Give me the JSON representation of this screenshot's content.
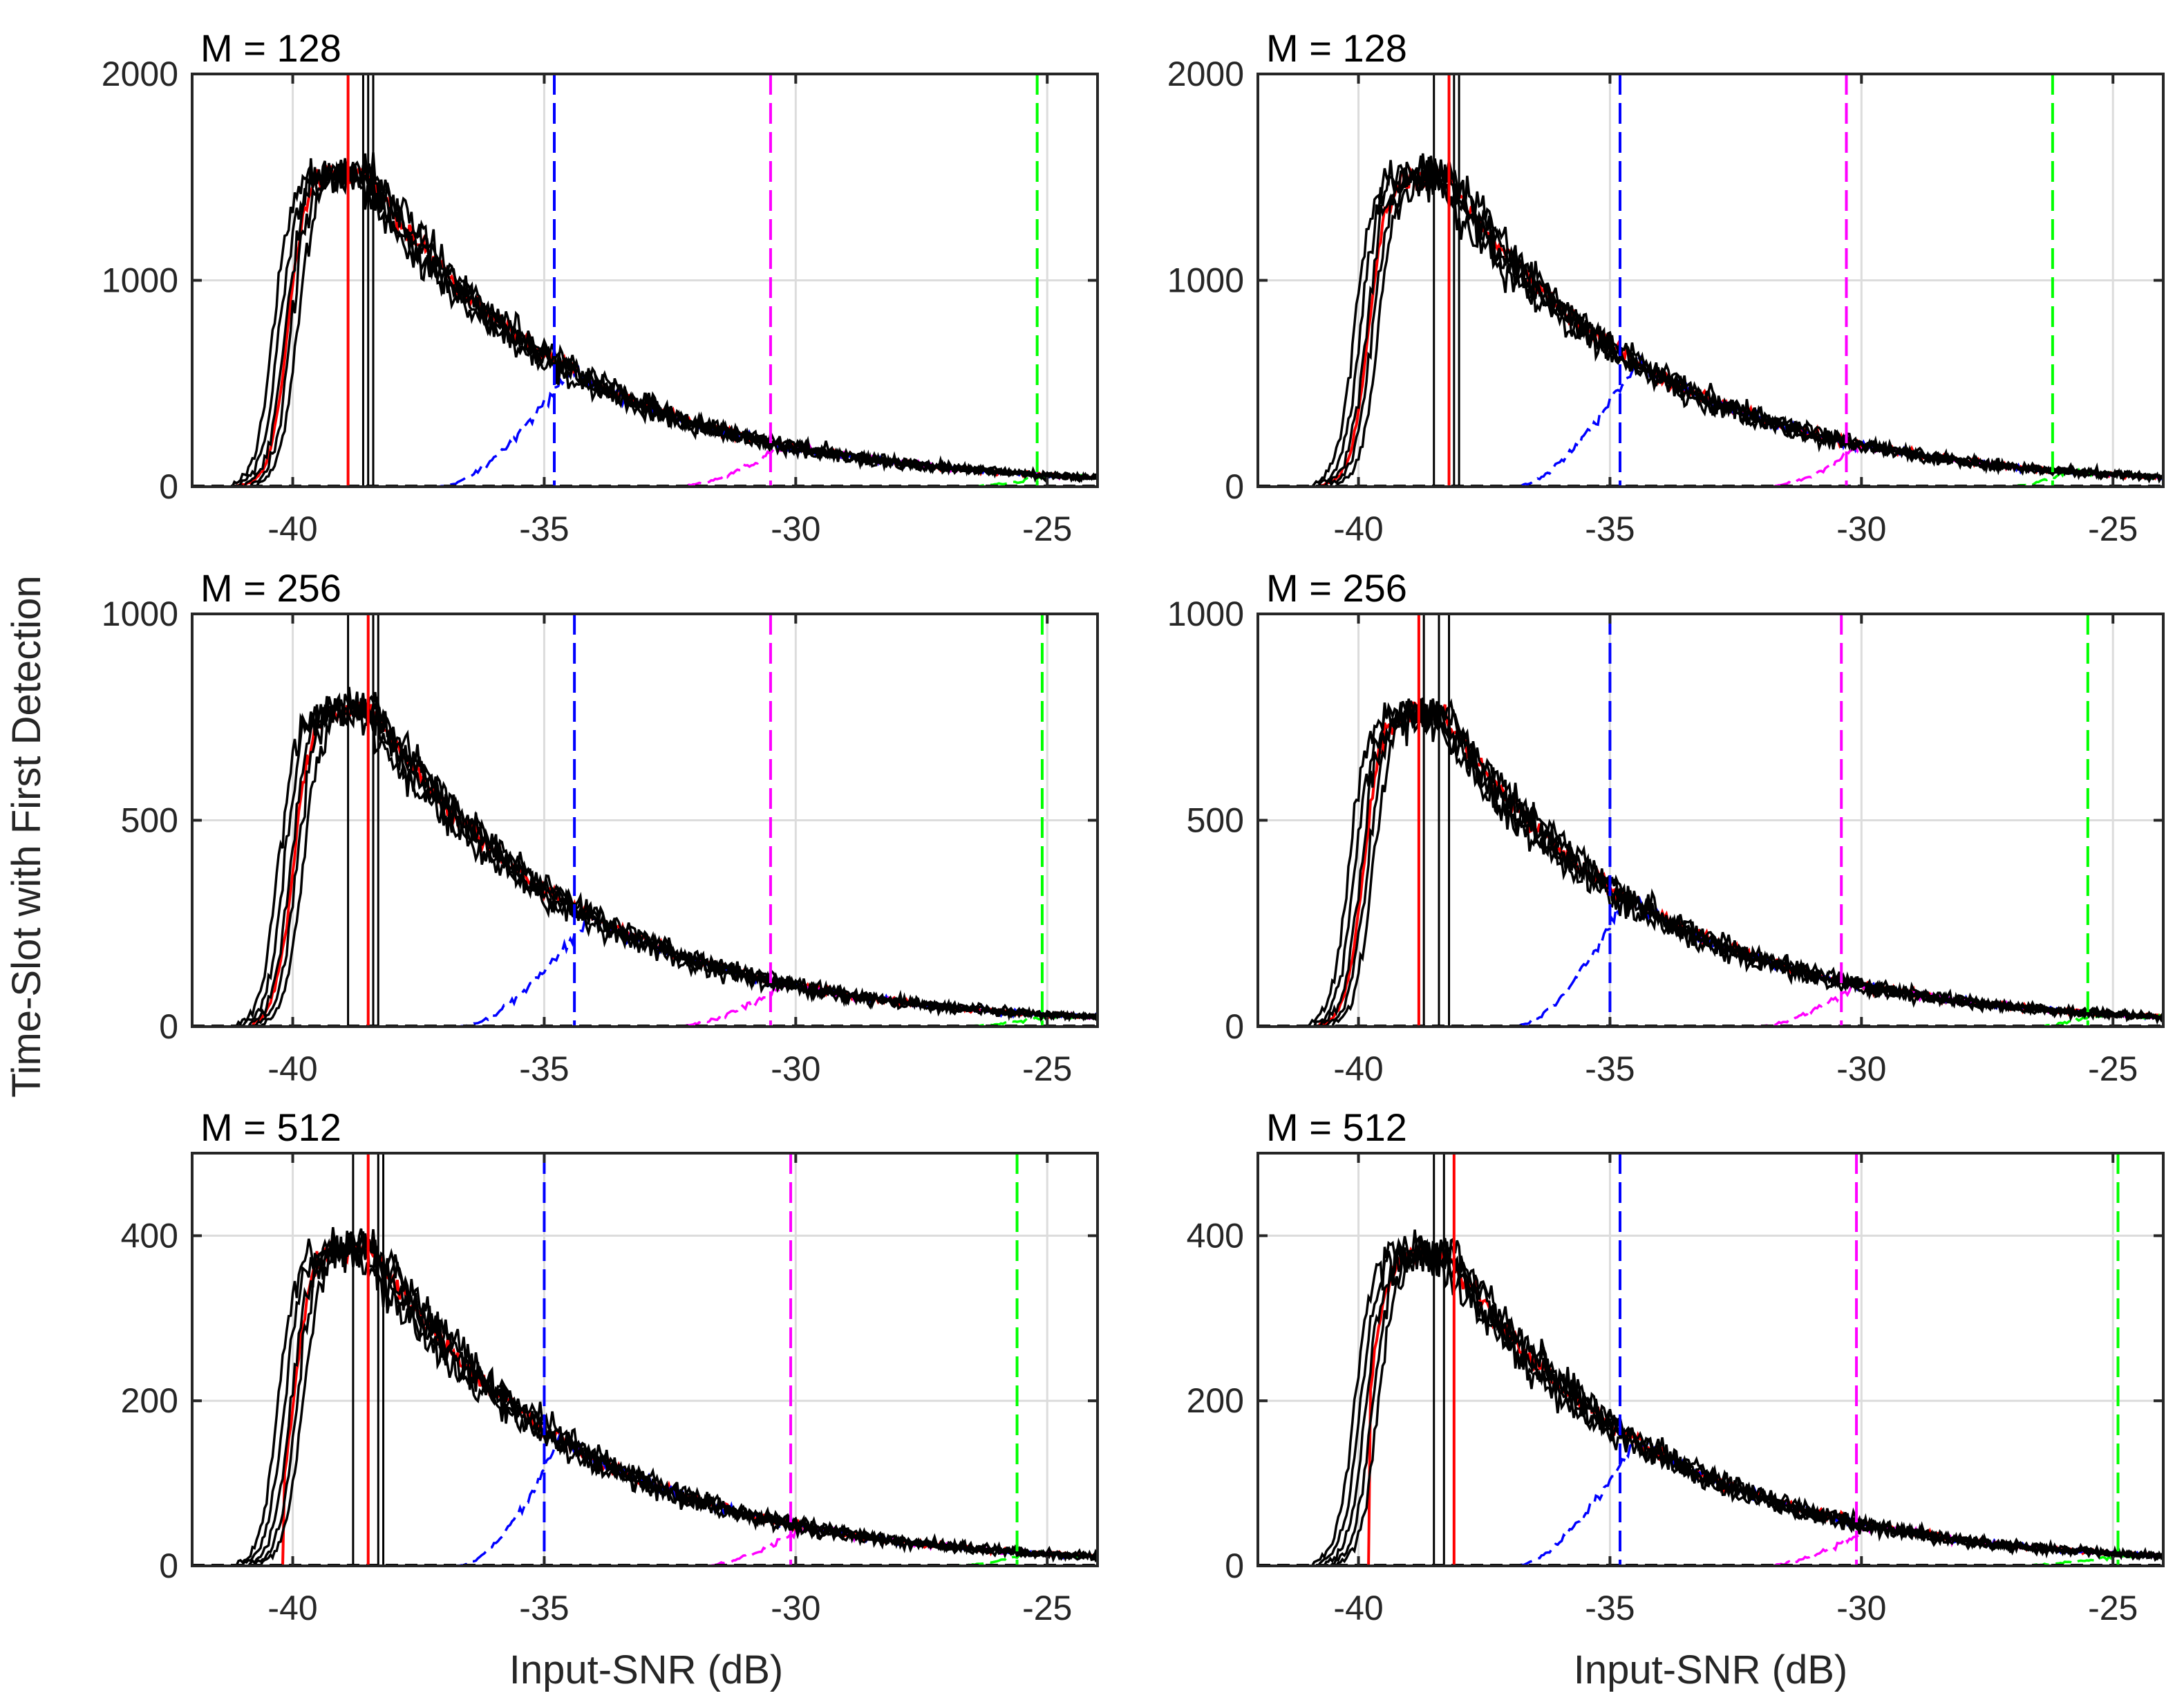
{
  "figure": {
    "ylabel": "Time-Slot with First Detection",
    "xlabel": "Input-SNR (dB)"
  },
  "colors": {
    "black": "#000000",
    "red": "#ff0000",
    "blue": "#0000ff",
    "magenta": "#ff00ff",
    "green": "#00ff00",
    "grid": "#dcdcdc",
    "axis": "#262626"
  },
  "chart_data": [
    {
      "type": "line",
      "title": "M = 128",
      "xlabel": "",
      "ylabel": "",
      "xlim": [
        -42,
        -24
      ],
      "ylim": [
        0,
        2000
      ],
      "xticks": [
        "-40",
        "-35",
        "-30",
        "-25"
      ],
      "xtick_values": [
        -40,
        -35,
        -30,
        -25
      ],
      "yticks": [
        "0",
        "1000",
        "2000"
      ],
      "ytick_values": [
        0,
        1000,
        2000
      ],
      "grid": true,
      "peak_snr": -38.6,
      "peak": 1520,
      "n_black_runs": 5,
      "black_vlines": [
        -38.6,
        -38.5,
        -38.4
      ],
      "series": [
        {
          "name": "red",
          "color": "red",
          "dashed": true,
          "start": -41.2,
          "vline": -38.9
        },
        {
          "name": "blue",
          "color": "blue",
          "dashed": true,
          "start": -37.2,
          "vline": -34.8
        },
        {
          "name": "magenta",
          "color": "magenta",
          "dashed": true,
          "start": -32.5,
          "vline": -30.5
        },
        {
          "name": "green",
          "color": "green",
          "dashed": true,
          "start": -26.8,
          "vline": -25.2
        }
      ]
    },
    {
      "type": "line",
      "title": "M = 128",
      "xlabel": "",
      "ylabel": "",
      "xlim": [
        -42,
        -24
      ],
      "ylim": [
        0,
        2000
      ],
      "xticks": [
        "-40",
        "-35",
        "-30",
        "-25"
      ],
      "xtick_values": [
        -40,
        -35,
        -30,
        -25
      ],
      "yticks": [
        "0",
        "1000",
        "2000"
      ],
      "ytick_values": [
        0,
        1000,
        2000
      ],
      "grid": true,
      "peak_snr": -38.3,
      "peak": 1500,
      "n_black_runs": 5,
      "black_vlines": [
        -38.5,
        -38.1,
        -38.0
      ],
      "series": [
        {
          "name": "red",
          "color": "red",
          "dashed": true,
          "start": -40.8,
          "vline": -38.2
        },
        {
          "name": "blue",
          "color": "blue",
          "dashed": true,
          "start": -37.0,
          "vline": -34.8
        },
        {
          "name": "magenta",
          "color": "magenta",
          "dashed": true,
          "start": -32.0,
          "vline": -30.3
        },
        {
          "name": "green",
          "color": "green",
          "dashed": true,
          "start": -27.2,
          "vline": -26.2
        }
      ]
    },
    {
      "type": "line",
      "title": "M = 256",
      "xlabel": "",
      "ylabel": "",
      "xlim": [
        -42,
        -24
      ],
      "ylim": [
        0,
        1000
      ],
      "xticks": [
        "-40",
        "-35",
        "-30",
        "-25"
      ],
      "xtick_values": [
        -40,
        -35,
        -30,
        -25
      ],
      "yticks": [
        "0",
        "500",
        "1000"
      ],
      "ytick_values": [
        0,
        500,
        1000
      ],
      "grid": true,
      "peak_snr": -38.5,
      "peak": 770,
      "n_black_runs": 5,
      "black_vlines": [
        -38.9,
        -38.4,
        -38.3
      ],
      "series": [
        {
          "name": "red",
          "color": "red",
          "dashed": true,
          "start": -40.8,
          "vline": -38.5
        },
        {
          "name": "blue",
          "color": "blue",
          "dashed": true,
          "start": -36.8,
          "vline": -34.4
        },
        {
          "name": "magenta",
          "color": "magenta",
          "dashed": true,
          "start": -32.5,
          "vline": -30.5
        },
        {
          "name": "green",
          "color": "green",
          "dashed": true,
          "start": -27.0,
          "vline": -25.1
        }
      ]
    },
    {
      "type": "line",
      "title": "M = 256",
      "xlabel": "",
      "ylabel": "",
      "xlim": [
        -42,
        -24
      ],
      "ylim": [
        0,
        1000
      ],
      "xticks": [
        "-40",
        "-35",
        "-30",
        "-25"
      ],
      "xtick_values": [
        -40,
        -35,
        -30,
        -25
      ],
      "yticks": [
        "0",
        "500",
        "1000"
      ],
      "ytick_values": [
        0,
        500,
        1000
      ],
      "grid": true,
      "peak_snr": -38.4,
      "peak": 760,
      "n_black_runs": 5,
      "black_vlines": [
        -38.7,
        -38.4,
        -38.2
      ],
      "series": [
        {
          "name": "red",
          "color": "red",
          "dashed": true,
          "start": -40.8,
          "vline": -38.8
        },
        {
          "name": "blue",
          "color": "blue",
          "dashed": true,
          "start": -37.0,
          "vline": -35.0
        },
        {
          "name": "magenta",
          "color": "magenta",
          "dashed": true,
          "start": -32.2,
          "vline": -30.4
        },
        {
          "name": "green",
          "color": "green",
          "dashed": true,
          "start": -26.8,
          "vline": -25.5
        }
      ]
    },
    {
      "type": "line",
      "title": "M = 512",
      "xlabel": "",
      "ylabel": "",
      "xlim": [
        -42,
        -24
      ],
      "ylim": [
        0,
        500
      ],
      "xticks": [
        "-40",
        "-35",
        "-30",
        "-25"
      ],
      "xtick_values": [
        -40,
        -35,
        -30,
        -25
      ],
      "yticks": [
        "0",
        "200",
        "400"
      ],
      "ytick_values": [
        0,
        200,
        400
      ],
      "grid": true,
      "peak_snr": -38.5,
      "peak": 385,
      "n_black_runs": 5,
      "black_vlines": [
        -38.8,
        -38.3,
        -38.2
      ],
      "series": [
        {
          "name": "red",
          "color": "red",
          "dashed": true,
          "start": -40.2,
          "vline": -38.5
        },
        {
          "name": "blue",
          "color": "blue",
          "dashed": true,
          "start": -36.8,
          "vline": -35.0
        },
        {
          "name": "magenta",
          "color": "magenta",
          "dashed": true,
          "start": -32.0,
          "vline": -30.1
        },
        {
          "name": "green",
          "color": "green",
          "dashed": true,
          "start": -27.0,
          "vline": -25.6
        }
      ]
    },
    {
      "type": "line",
      "title": "M = 512",
      "xlabel": "",
      "ylabel": "",
      "xlim": [
        -42,
        -24
      ],
      "ylim": [
        0,
        500
      ],
      "xticks": [
        "-40",
        "-35",
        "-30",
        "-25"
      ],
      "xtick_values": [
        -40,
        -35,
        -30,
        -25
      ],
      "yticks": [
        "0",
        "200",
        "400"
      ],
      "ytick_values": [
        0,
        200,
        400
      ],
      "grid": true,
      "peak_snr": -38.3,
      "peak": 380,
      "n_black_runs": 5,
      "black_vlines": [
        -38.5,
        -38.3,
        -38.1
      ],
      "series": [
        {
          "name": "red",
          "color": "red",
          "dashed": true,
          "start": -39.8,
          "vline": -38.1
        },
        {
          "name": "blue",
          "color": "blue",
          "dashed": true,
          "start": -37.0,
          "vline": -34.8
        },
        {
          "name": "magenta",
          "color": "magenta",
          "dashed": true,
          "start": -32.0,
          "vline": -30.1
        },
        {
          "name": "green",
          "color": "green",
          "dashed": true,
          "start": -27.2,
          "vline": -24.9
        }
      ]
    }
  ]
}
